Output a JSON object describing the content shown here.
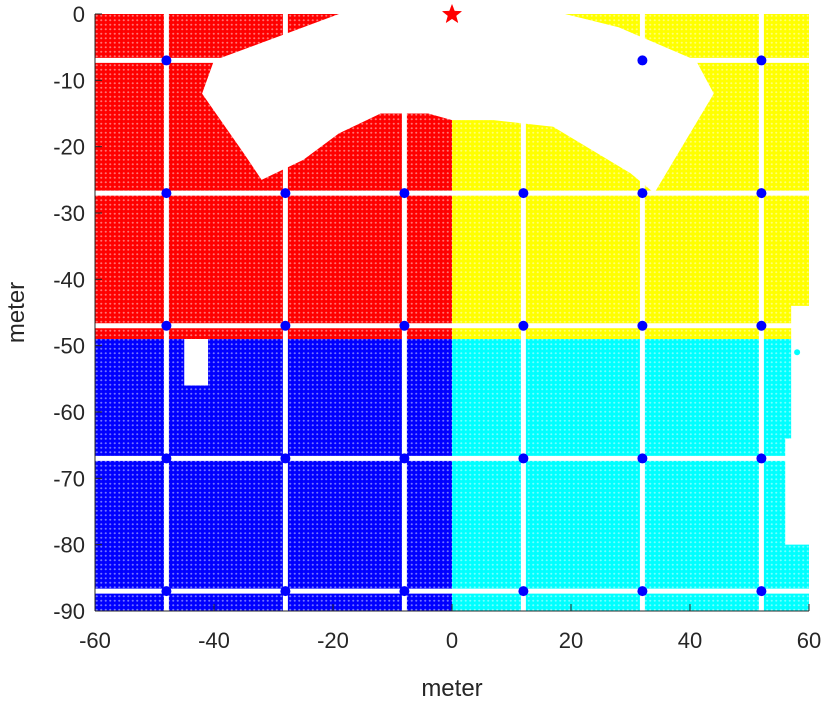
{
  "chart_data": {
    "type": "scatter",
    "title": "",
    "xlabel": "meter",
    "ylabel": "meter",
    "xlim": [
      -60,
      60
    ],
    "ylim": [
      -90,
      0
    ],
    "xticks": [
      -60,
      -40,
      -20,
      0,
      20,
      40,
      60
    ],
    "yticks": [
      0,
      -10,
      -20,
      -30,
      -40,
      -50,
      -60,
      -70,
      -80,
      -90
    ],
    "xtick_labels": [
      "-60",
      "-40",
      "-20",
      "0",
      "20",
      "40",
      "60"
    ],
    "ytick_labels": [
      "0",
      "-10",
      "-20",
      "-30",
      "-40",
      "-50",
      "-60",
      "-70",
      "-80",
      "-90"
    ],
    "grid": false,
    "legend": "none",
    "regions": [
      {
        "color": "#ff0000",
        "x_range": [
          -60,
          0
        ],
        "y_range": [
          -49,
          0
        ]
      },
      {
        "color": "#ffff00",
        "x_range": [
          0,
          60
        ],
        "y_range": [
          -49,
          0
        ]
      },
      {
        "color": "#0000ff",
        "x_range": [
          -60,
          0
        ],
        "y_range": [
          -90,
          -49
        ]
      },
      {
        "color": "#00ffff",
        "x_range": [
          0,
          60
        ],
        "y_range": [
          -90,
          -49
        ]
      }
    ],
    "corridor_x": [
      -48,
      -28,
      -8,
      12,
      32,
      52
    ],
    "corridor_y": [
      -7,
      -27,
      -47,
      -67,
      -87
    ],
    "blue_nodes": [
      {
        "x": -48,
        "y": -7
      },
      {
        "x": 32,
        "y": -7
      },
      {
        "x": 52,
        "y": -7
      },
      {
        "x": -48,
        "y": -27
      },
      {
        "x": -28,
        "y": -27
      },
      {
        "x": -8,
        "y": -27
      },
      {
        "x": 12,
        "y": -27
      },
      {
        "x": 32,
        "y": -27
      },
      {
        "x": 52,
        "y": -27
      },
      {
        "x": -48,
        "y": -47
      },
      {
        "x": -28,
        "y": -47
      },
      {
        "x": -8,
        "y": -47
      },
      {
        "x": 12,
        "y": -47
      },
      {
        "x": 32,
        "y": -47
      },
      {
        "x": 52,
        "y": -47
      },
      {
        "x": -48,
        "y": -67
      },
      {
        "x": -28,
        "y": -67
      },
      {
        "x": -8,
        "y": -67
      },
      {
        "x": 12,
        "y": -67
      },
      {
        "x": 32,
        "y": -67
      },
      {
        "x": 52,
        "y": -67
      },
      {
        "x": -48,
        "y": -87
      },
      {
        "x": -28,
        "y": -87
      },
      {
        "x": -8,
        "y": -87
      },
      {
        "x": 12,
        "y": -87
      },
      {
        "x": 32,
        "y": -87
      },
      {
        "x": 52,
        "y": -87
      }
    ],
    "source_marker": {
      "x": 0,
      "y": 0,
      "shape": "star",
      "color": "#ff0000"
    },
    "outlier_point": {
      "x": 58,
      "y": -51,
      "color": "#00ffff"
    },
    "empty_regions": [
      {
        "description": "uncovered top region",
        "polygon": [
          [
            -19,
            0
          ],
          [
            -40,
            -7
          ],
          [
            -42,
            -12
          ],
          [
            -35,
            -21
          ],
          [
            -32,
            -25
          ],
          [
            -25,
            -22
          ],
          [
            -19,
            -18
          ],
          [
            -12,
            -15
          ],
          [
            -4,
            -15
          ],
          [
            0,
            -16
          ],
          [
            7,
            -16
          ],
          [
            17,
            -17
          ],
          [
            30,
            -24
          ],
          [
            34,
            -27
          ],
          [
            44,
            -12
          ],
          [
            41,
            -7
          ],
          [
            28,
            -2
          ],
          [
            19,
            0
          ]
        ]
      },
      {
        "description": "notch",
        "polygon": [
          [
            -45,
            -49
          ],
          [
            -45,
            -56
          ],
          [
            -41,
            -56
          ],
          [
            -41,
            -49
          ]
        ]
      },
      {
        "description": "right edge gap",
        "polygon": [
          [
            57,
            -44
          ],
          [
            60,
            -44
          ],
          [
            60,
            -80
          ],
          [
            56,
            -80
          ],
          [
            56,
            -64
          ],
          [
            57,
            -64
          ]
        ]
      }
    ]
  }
}
